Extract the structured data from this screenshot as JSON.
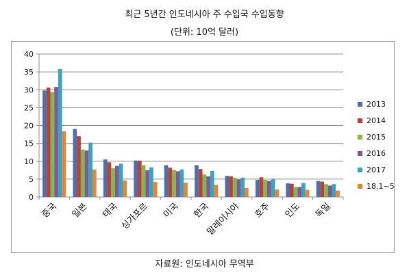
{
  "title": "최근 5년간 인도네시아 주 수입국 수입동향",
  "subtitle": "(단위: 10억 달러)",
  "source": "자료원: 인도네시아 무역부",
  "chart_data": {
    "type": "bar",
    "categories": [
      "중국",
      "일본",
      "태국",
      "싱가포르",
      "미국",
      "한국",
      "말레이시아",
      "호주",
      "인도",
      "독일"
    ],
    "series": [
      {
        "name": "2013",
        "color": "#4f6fa8",
        "values": [
          29.8,
          19.0,
          10.5,
          10.2,
          8.9,
          8.9,
          5.9,
          4.8,
          3.8,
          4.5
        ]
      },
      {
        "name": "2014",
        "color": "#b04440",
        "values": [
          30.6,
          17.0,
          9.7,
          10.2,
          8.2,
          7.8,
          5.8,
          5.5,
          3.7,
          4.3
        ]
      },
      {
        "name": "2015",
        "color": "#8bb34c",
        "values": [
          29.4,
          13.3,
          8.1,
          8.9,
          7.6,
          6.3,
          5.4,
          4.8,
          2.8,
          3.6
        ]
      },
      {
        "name": "2016",
        "color": "#7a5c9d",
        "values": [
          30.8,
          13.0,
          8.7,
          7.5,
          7.2,
          5.8,
          4.9,
          4.5,
          2.8,
          3.2
        ]
      },
      {
        "name": "2017",
        "color": "#3fa2bd",
        "values": [
          35.8,
          15.2,
          9.3,
          8.3,
          7.7,
          7.3,
          5.4,
          5.1,
          3.9,
          3.6
        ]
      },
      {
        "name": "18.1~5",
        "color": "#e0883a",
        "values": [
          18.4,
          7.7,
          4.6,
          4.2,
          4.0,
          3.4,
          2.5,
          2.1,
          2.0,
          1.8
        ]
      }
    ],
    "ylim": [
      0,
      40
    ],
    "yticks": [
      "0",
      "5",
      "10",
      "15",
      "20",
      "25",
      "30",
      "35",
      "40"
    ],
    "grid": true,
    "legend": "right"
  }
}
